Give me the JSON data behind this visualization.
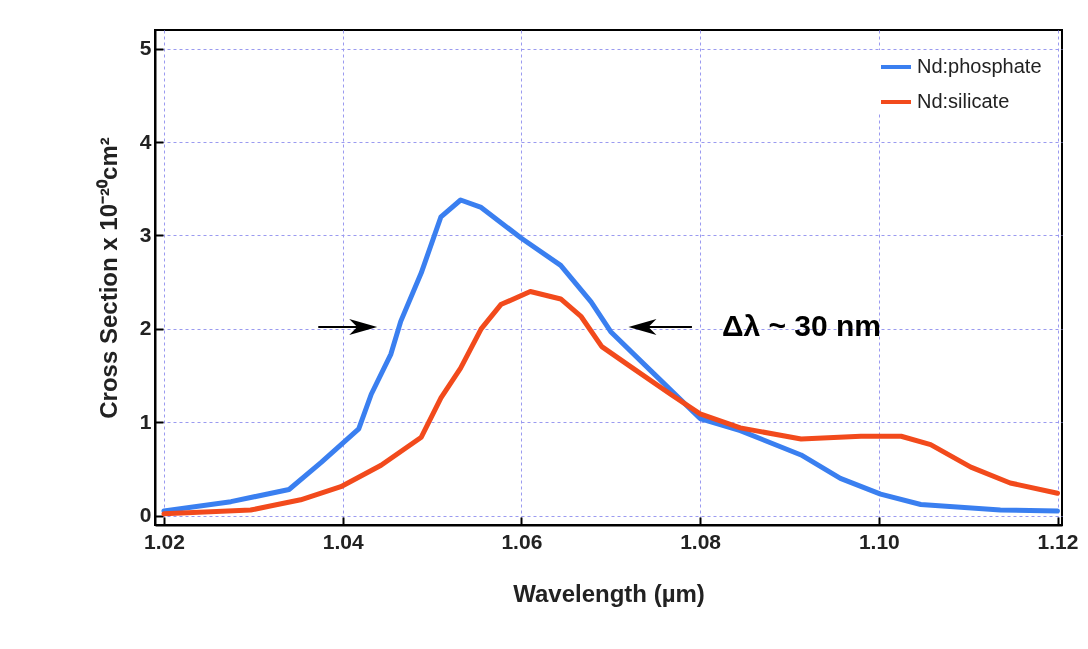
{
  "chart_data": {
    "type": "line",
    "xlabel": "Wavelength (µm)",
    "ylabel": "Cross Section  x 10⁻²⁰cm²",
    "annotations": [
      "Δλ ~ 30 nm"
    ],
    "xlim": [
      1.019,
      1.1205
    ],
    "xticks": [
      {
        "value": 1.02,
        "label": "1.02"
      },
      {
        "value": 1.04,
        "label": "1.04"
      },
      {
        "value": 1.06,
        "label": "1.06"
      },
      {
        "value": 1.08,
        "label": "1.08"
      },
      {
        "value": 1.1,
        "label": "1.10"
      },
      {
        "value": 1.12,
        "label": "1.12"
      }
    ],
    "ylim": [
      -0.1,
      5.2
    ],
    "yticks": [
      0,
      1,
      2,
      3,
      4,
      5
    ],
    "grid": true,
    "legend": "top right",
    "line_style": "solid",
    "series": [
      {
        "name": "Nd:phosphate",
        "color": "#3a7ff0",
        "x": [
          1.02,
          1.0275,
          1.034,
          1.0376,
          1.0418,
          1.0432,
          1.0454,
          1.0465,
          1.0488,
          1.051,
          1.0532,
          1.0555,
          1.06,
          1.0644,
          1.0678,
          1.07,
          1.0745,
          1.08,
          1.0845,
          1.0913,
          1.0957,
          1.1002,
          1.1047,
          1.1136,
          1.12
        ],
        "values": [
          0.05,
          0.15,
          0.28,
          0.57,
          0.93,
          1.3,
          1.73,
          2.08,
          2.6,
          3.2,
          3.38,
          3.3,
          2.97,
          2.68,
          2.29,
          1.97,
          1.55,
          1.04,
          0.91,
          0.65,
          0.4,
          0.23,
          0.12,
          0.06,
          0.05
        ]
      },
      {
        "name": "Nd:silicate",
        "color": "#f24a1c",
        "x": [
          1.02,
          1.0297,
          1.0353,
          1.0398,
          1.0443,
          1.0488,
          1.051,
          1.0532,
          1.0555,
          1.0577,
          1.061,
          1.0644,
          1.0667,
          1.069,
          1.0723,
          1.0767,
          1.08,
          1.0845,
          1.0913,
          1.098,
          1.1025,
          1.1058,
          1.1103,
          1.1147,
          1.12
        ],
        "values": [
          0.02,
          0.06,
          0.17,
          0.31,
          0.54,
          0.84,
          1.26,
          1.58,
          2.0,
          2.26,
          2.4,
          2.32,
          2.13,
          1.81,
          1.59,
          1.3,
          1.09,
          0.94,
          0.82,
          0.85,
          0.85,
          0.76,
          0.52,
          0.35,
          0.24
        ]
      }
    ]
  }
}
